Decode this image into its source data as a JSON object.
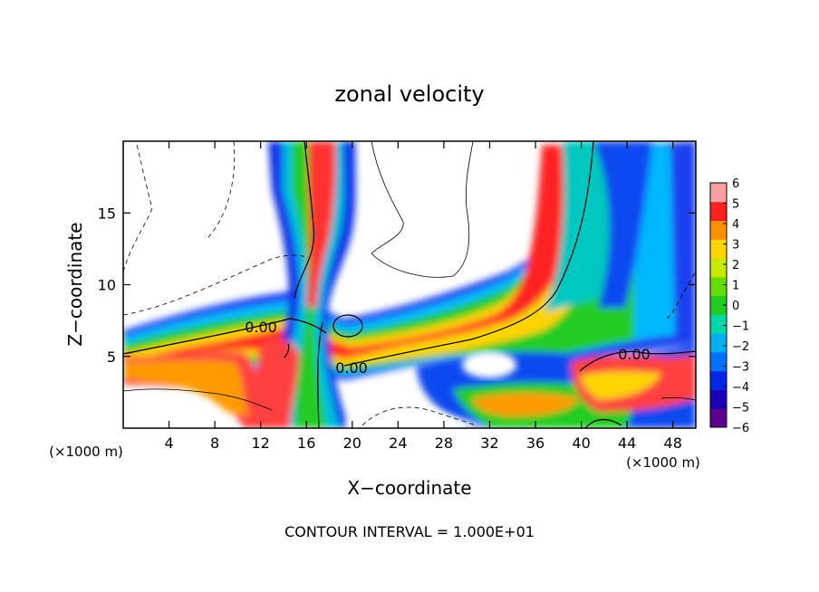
{
  "chart_data": {
    "type": "heatmap",
    "title": "zonal velocity",
    "xlabel": "X−coordinate",
    "ylabel": "Z−coordinate",
    "xunit": "(×1000 m)",
    "xunit_right": "(×1000 m)",
    "xlim": [
      0,
      50
    ],
    "ylim": [
      0,
      20
    ],
    "xticks": [
      4,
      8,
      12,
      16,
      20,
      24,
      28,
      32,
      36,
      40,
      44,
      48
    ],
    "yticks": [
      5,
      10,
      15
    ],
    "colorbar": {
      "ticks": [
        "6",
        "5",
        "4",
        "3",
        "2",
        "1",
        "0",
        "−1",
        "−2",
        "−3",
        "−4",
        "−5",
        "−6"
      ],
      "range": [
        -6,
        6
      ],
      "colors": [
        "#5a0090",
        "#1800b8",
        "#0028e8",
        "#0070ff",
        "#00b0f0",
        "#00d8a8",
        "#22cc22",
        "#66dd00",
        "#c8e800",
        "#ffd400",
        "#ff9000",
        "#ff2020",
        "#f8a0a0"
      ]
    },
    "contour_labels": [
      "0.00",
      "0.00",
      "0.00"
    ],
    "footer": "CONTOUR INTERVAL = 1.000E+01"
  }
}
